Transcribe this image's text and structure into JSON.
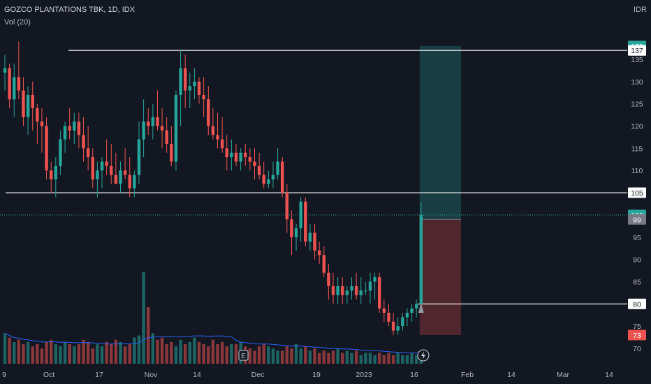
{
  "header": {
    "symbol": "GOZCO PLANTATIONS TBK, 1D, IDX",
    "volume": "Vol (20)",
    "currency": "IDR"
  },
  "colors": {
    "background": "#131722",
    "up": "#26a69a",
    "down": "#ef5350",
    "volume_ma": "#2962ff",
    "axis_text": "#b2b5be",
    "hline": "#ffffff"
  },
  "chart_data": {
    "type": "candlestick",
    "y_axis": {
      "ticks": [
        70,
        75,
        80,
        85,
        90,
        95,
        100,
        105,
        110,
        115,
        120,
        125,
        130,
        135
      ]
    },
    "x_axis": {
      "ticks": [
        "9",
        "Oct",
        "17",
        "Nov",
        "14",
        "Dec",
        "19",
        "2023",
        "16",
        "Feb",
        "14",
        "Mar",
        "14"
      ]
    },
    "horizontal_lines": [
      137,
      105,
      80
    ],
    "price_labels": [
      {
        "text": "138",
        "value": 138,
        "color": "#26a69a"
      },
      {
        "text": "137",
        "value": 137,
        "color": "#ffffff"
      },
      {
        "text": "105",
        "value": 105,
        "color": "#ffffff"
      },
      {
        "text": "100",
        "value": 100,
        "color": "#26a69a"
      },
      {
        "text": "99",
        "value": 99,
        "color": "#787b86"
      },
      {
        "text": "80",
        "value": 80,
        "color": "#ffffff"
      },
      {
        "text": "73",
        "value": 73,
        "color": "#ef5350"
      }
    ],
    "position": {
      "entry": 99,
      "target": 138,
      "stop": 73
    },
    "last_price": 100,
    "event_marker": "E",
    "candles": [
      [
        132,
        136,
        128,
        133
      ],
      [
        133,
        134,
        124,
        126
      ],
      [
        126,
        134,
        122,
        131
      ],
      [
        131,
        139,
        126,
        128
      ],
      [
        128,
        131,
        120,
        122
      ],
      [
        122,
        129,
        118,
        127
      ],
      [
        127,
        130,
        119,
        124
      ],
      [
        124,
        125,
        116,
        121
      ],
      [
        121,
        124,
        114,
        120
      ],
      [
        120,
        122,
        108,
        110
      ],
      [
        110,
        112,
        105,
        108
      ],
      [
        108,
        113,
        104,
        111
      ],
      [
        111,
        119,
        109,
        117
      ],
      [
        117,
        121,
        114,
        120
      ],
      [
        120,
        124,
        117,
        119
      ],
      [
        119,
        123,
        116,
        121
      ],
      [
        121,
        123,
        115,
        118
      ],
      [
        118,
        122,
        112,
        115
      ],
      [
        115,
        120,
        110,
        113
      ],
      [
        113,
        115,
        106,
        108
      ],
      [
        108,
        112,
        104,
        110
      ],
      [
        110,
        113,
        106,
        112
      ],
      [
        112,
        117,
        109,
        111
      ],
      [
        111,
        116,
        107,
        109
      ],
      [
        109,
        114,
        107,
        107
      ],
      [
        107,
        112,
        105,
        110
      ],
      [
        110,
        115,
        108,
        109
      ],
      [
        109,
        113,
        104,
        106
      ],
      [
        106,
        110,
        104,
        109
      ],
      [
        109,
        121,
        107,
        117
      ],
      [
        117,
        126,
        113,
        121
      ],
      [
        121,
        124,
        118,
        120
      ],
      [
        120,
        125,
        117,
        122
      ],
      [
        122,
        128,
        119,
        120
      ],
      [
        120,
        124,
        115,
        119
      ],
      [
        119,
        122,
        114,
        116
      ],
      [
        116,
        120,
        111,
        112
      ],
      [
        112,
        128,
        110,
        127
      ],
      [
        127,
        137,
        120,
        133
      ],
      [
        133,
        136,
        124,
        128
      ],
      [
        128,
        132,
        124,
        129
      ],
      [
        129,
        133,
        126,
        130
      ],
      [
        130,
        131,
        125,
        127
      ],
      [
        127,
        131,
        122,
        126
      ],
      [
        126,
        129,
        118,
        120
      ],
      [
        120,
        124,
        117,
        118
      ],
      [
        118,
        123,
        115,
        117
      ],
      [
        117,
        122,
        114,
        115
      ],
      [
        115,
        118,
        110,
        113
      ],
      [
        113,
        117,
        110,
        114
      ],
      [
        114,
        116,
        111,
        112
      ],
      [
        112,
        115,
        110,
        114
      ],
      [
        114,
        116,
        111,
        113
      ],
      [
        113,
        115,
        110,
        112
      ],
      [
        112,
        115,
        108,
        111
      ],
      [
        111,
        114,
        108,
        109
      ],
      [
        109,
        112,
        106,
        107
      ],
      [
        107,
        110,
        106,
        108
      ],
      [
        108,
        112,
        106,
        109
      ],
      [
        109,
        115,
        108,
        112
      ],
      [
        112,
        113,
        104,
        105
      ],
      [
        105,
        107,
        96,
        99
      ],
      [
        99,
        101,
        91,
        95
      ],
      [
        95,
        98,
        92,
        97
      ],
      [
        97,
        104,
        94,
        103
      ],
      [
        103,
        104,
        93,
        94
      ],
      [
        94,
        98,
        92,
        96
      ],
      [
        96,
        98,
        90,
        92
      ],
      [
        92,
        94,
        89,
        91
      ],
      [
        91,
        93,
        86,
        87
      ],
      [
        87,
        89,
        81,
        84
      ],
      [
        84,
        87,
        80,
        82
      ],
      [
        82,
        86,
        80,
        84
      ],
      [
        84,
        86,
        80,
        82
      ],
      [
        82,
        84,
        80,
        83
      ],
      [
        83,
        86,
        81,
        84
      ],
      [
        84,
        87,
        81,
        82
      ],
      [
        82,
        86,
        80,
        83
      ],
      [
        83,
        85,
        82,
        83
      ],
      [
        83,
        87,
        80,
        85
      ],
      [
        85,
        87,
        81,
        86
      ],
      [
        86,
        87,
        78,
        79
      ],
      [
        79,
        81,
        76,
        78
      ],
      [
        78,
        80,
        75,
        76
      ],
      [
        76,
        78,
        73,
        74
      ],
      [
        74,
        77,
        73,
        75
      ],
      [
        75,
        78,
        74,
        77
      ],
      [
        77,
        79,
        75,
        78
      ],
      [
        78,
        80,
        76,
        79
      ],
      [
        79,
        81,
        77,
        80
      ],
      [
        80,
        103,
        80,
        100
      ]
    ],
    "volume": [
      14,
      12,
      10,
      11,
      9,
      10,
      8,
      9,
      7,
      10,
      11,
      9,
      8,
      10,
      9,
      8,
      9,
      11,
      10,
      7,
      9,
      8,
      10,
      9,
      11,
      10,
      8,
      9,
      12,
      13,
      42,
      26,
      14,
      11,
      12,
      9,
      10,
      8,
      11,
      9,
      10,
      12,
      10,
      9,
      8,
      11,
      9,
      10,
      8,
      9,
      9,
      10,
      8,
      7,
      6,
      8,
      9,
      8,
      7,
      6,
      6,
      8,
      7,
      9,
      7,
      8,
      6,
      7,
      5,
      6,
      5,
      6,
      7,
      5,
      6,
      5,
      6,
      4,
      5,
      5,
      4,
      5,
      4,
      5,
      4,
      5,
      4,
      4,
      5,
      4,
      6
    ]
  }
}
